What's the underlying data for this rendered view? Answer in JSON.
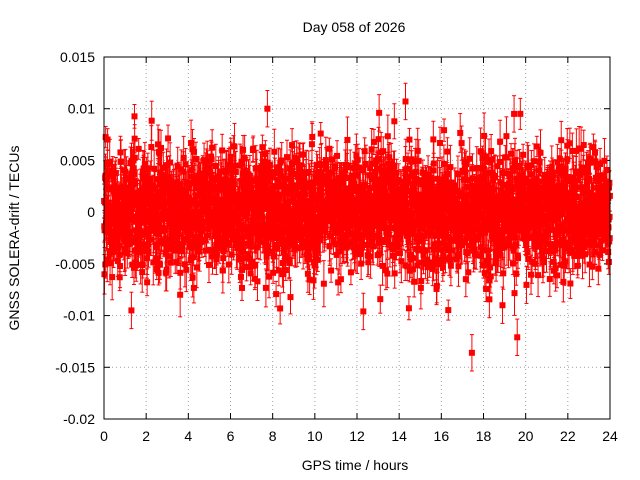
{
  "chart_data": {
    "type": "scatter",
    "title": "Day 058 of 2026",
    "xlabel": "GPS time / hours",
    "ylabel": "GNSS SOLERA-drift / TECUs",
    "xlim": [
      0,
      24
    ],
    "ylim": [
      -0.02,
      0.015
    ],
    "x_ticks": [
      0,
      2,
      4,
      6,
      8,
      10,
      12,
      14,
      16,
      18,
      20,
      22,
      24
    ],
    "x_tick_labels": [
      "0",
      "2",
      "4",
      "6",
      "8",
      "10",
      "12",
      "14",
      "16",
      "18",
      "20",
      "22",
      "24"
    ],
    "y_ticks": [
      -0.02,
      -0.015,
      -0.01,
      -0.005,
      0,
      0.005,
      0.01,
      0.015
    ],
    "y_tick_labels": [
      "-0.02",
      "-0.015",
      "-0.01",
      "-0.005",
      "0",
      "0.005",
      "0.01",
      "0.015"
    ],
    "grid": true,
    "series": [
      {
        "name": "SOLERA-drift",
        "color": "#ff0000",
        "marker": "square",
        "error_bars": true,
        "n_points": 2880,
        "mean": 0.0,
        "std": 0.0028,
        "typical_error": 0.0016,
        "notable_points": [
          {
            "x": 17.45,
            "y": -0.0136
          },
          {
            "x": 19.6,
            "y": -0.0121
          },
          {
            "x": 1.3,
            "y": -0.0095
          },
          {
            "x": 12.3,
            "y": -0.0096
          },
          {
            "x": 18.9,
            "y": -0.009
          },
          {
            "x": 14.3,
            "y": 0.0107
          },
          {
            "x": 7.75,
            "y": 0.01
          },
          {
            "x": 19.45,
            "y": 0.0095
          },
          {
            "x": 13.05,
            "y": 0.0096
          }
        ]
      }
    ]
  },
  "colors": {
    "background": "#ffffff",
    "grid": "#a0a0a0",
    "axis": "#000000",
    "series": "#ff0000"
  }
}
